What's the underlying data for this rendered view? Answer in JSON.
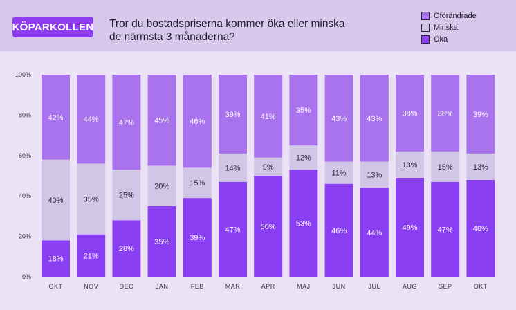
{
  "brand": {
    "label": "KÖPARKOLLEN"
  },
  "header": {
    "title_line1": "Tror du bostadspriserna kommer öka eller minska",
    "title_line2": "de närmsta 3 månaderna?"
  },
  "colors": {
    "header_bg": "#d7c8ec",
    "page_bg": "#ece2f6",
    "brand_bg": "#8f3cf0",
    "oforandrade": "#a873ec",
    "minska": "#d2c6e6",
    "oka": "#8b3ff2"
  },
  "chart_data": {
    "type": "bar",
    "stacked": true,
    "title": "Tror du bostadspriserna kommer öka eller minska de närmsta 3 månaderna?",
    "categories": [
      "OKT",
      "NOV",
      "DEC",
      "JAN",
      "FEB",
      "MAR",
      "APR",
      "MAJ",
      "JUN",
      "JUL",
      "AUG",
      "SEP",
      "OKT"
    ],
    "series": [
      {
        "name": "Öka",
        "color": "#8b3ff2",
        "label_color": "#ffffff",
        "values": [
          18,
          21,
          28,
          35,
          39,
          47,
          50,
          53,
          46,
          44,
          49,
          47,
          48
        ]
      },
      {
        "name": "Minska",
        "color": "#d2c6e6",
        "label_color": "#2a2440",
        "values": [
          40,
          35,
          25,
          20,
          15,
          14,
          9,
          12,
          11,
          13,
          13,
          15,
          13
        ]
      },
      {
        "name": "Oförändrade",
        "color": "#a873ec",
        "label_color": "#ffffff",
        "values": [
          42,
          44,
          47,
          45,
          46,
          39,
          41,
          35,
          43,
          43,
          38,
          38,
          39
        ]
      }
    ],
    "legend": [
      "Oförändrade",
      "Minska",
      "Öka"
    ],
    "yticks": [
      "0%",
      "20%",
      "40%",
      "60%",
      "80%",
      "100%"
    ],
    "ylim": [
      0,
      100
    ],
    "xlabel": "",
    "ylabel": ""
  }
}
